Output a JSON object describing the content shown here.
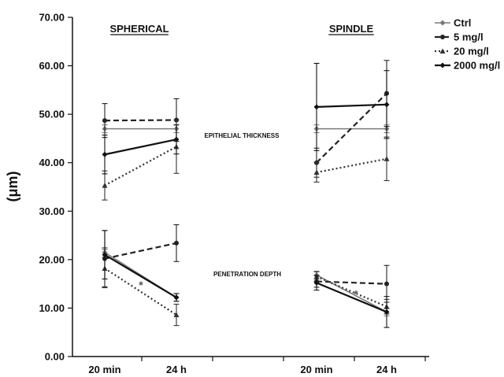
{
  "chart_data": {
    "type": "line",
    "ylabel": "(μm)",
    "ylim": [
      0,
      70
    ],
    "yticks": [
      "0.00",
      "10.00",
      "20.00",
      "30.00",
      "40.00",
      "50.00",
      "60.00",
      "70.00"
    ],
    "x_tick_labels": [
      "20 min",
      "24 h",
      "20 min",
      "24 h"
    ],
    "grid": false,
    "legend_position": "top-right",
    "panels": [
      {
        "label": "SPHERICAL",
        "x": [
          "20 min",
          "24 h"
        ]
      },
      {
        "label": "SPINDLE",
        "x": [
          "20 min",
          "24 h"
        ]
      }
    ],
    "groups": [
      {
        "label": "EPITHELIAL THICKNESS"
      },
      {
        "label": "PENETRATION DEPTH"
      }
    ],
    "series": [
      {
        "name": "Ctrl",
        "color": "#7a7a7a",
        "dash": "solid",
        "marker": "diamond",
        "epithelial_thickness": {
          "spherical": [
            {
              "mean": 47.0,
              "err": 0.8
            },
            {
              "mean": 47.0,
              "err": 0.8
            }
          ],
          "spindle": [
            {
              "mean": 47.0,
              "err": 0.8
            },
            {
              "mean": 47.0,
              "err": 0.8
            }
          ]
        },
        "penetration_depth": {
          "spherical": [
            {
              "mean": 21.5,
              "err": 1.0
            },
            {
              "mean": 12.2,
              "err": 0.8
            }
          ],
          "spindle": [
            {
              "mean": 16.8,
              "err": 0.8
            },
            {
              "mean": 9.2,
              "err": 0.8
            }
          ]
        }
      },
      {
        "name": "5 mg/l",
        "color": "#222222",
        "dash": "dashed",
        "marker": "circle",
        "epithelial_thickness": {
          "spherical": [
            {
              "mean": 48.7,
              "err": 3.5
            },
            {
              "mean": 48.8,
              "err": 4.4
            }
          ],
          "spindle": [
            {
              "mean": 40.0,
              "err": 3.0
            },
            {
              "mean": 54.3,
              "err": 6.8
            }
          ]
        },
        "penetration_depth": {
          "spherical": [
            {
              "mean": 20.2,
              "err": 5.8
            },
            {
              "mean": 23.4,
              "err": 3.8
            }
          ],
          "spindle": [
            {
              "mean": 15.5,
              "err": 1.2
            },
            {
              "mean": 15.0,
              "err": 3.8
            }
          ]
        }
      },
      {
        "name": "20 mg/l",
        "color": "#333333",
        "dash": "dotted",
        "marker": "triangle",
        "epithelial_thickness": {
          "spherical": [
            {
              "mean": 35.3,
              "err": 3.0
            },
            {
              "mean": 43.3,
              "err": 5.5
            }
          ],
          "spindle": [
            {
              "mean": 38.0,
              "err": 2.0
            },
            {
              "mean": 40.8,
              "err": 4.5
            }
          ]
        },
        "penetration_depth": {
          "spherical": [
            {
              "mean": 18.2,
              "err": 4.0
            },
            {
              "mean": 8.6,
              "err": 2.2
            }
          ],
          "spindle": [
            {
              "mean": 16.5,
              "err": 1.0
            },
            {
              "mean": 10.3,
              "err": 1.5
            }
          ]
        }
      },
      {
        "name": "2000 mg/l",
        "color": "#111111",
        "dash": "solid",
        "marker": "diamond",
        "epithelial_thickness": {
          "spherical": [
            {
              "mean": 41.7,
              "err": 4.0
            },
            {
              "mean": 44.8,
              "err": 3.0
            }
          ],
          "spindle": [
            {
              "mean": 51.5,
              "err": 9.0
            },
            {
              "mean": 52.0,
              "err": 7.0
            }
          ]
        },
        "penetration_depth": {
          "spherical": [
            {
              "mean": 21.0,
              "err": 5.0
            },
            {
              "mean": 12.2,
              "err": 0.8
            }
          ],
          "spindle": [
            {
              "mean": 15.2,
              "err": 1.5
            },
            {
              "mean": 9.2,
              "err": 3.2
            }
          ]
        }
      }
    ],
    "annotations": [
      {
        "text": "*",
        "panel": "spherical",
        "group": "penetration_depth",
        "y": 14.8
      },
      {
        "text": "*",
        "panel": "spindle",
        "group": "penetration_depth",
        "y": 12.9
      }
    ]
  }
}
